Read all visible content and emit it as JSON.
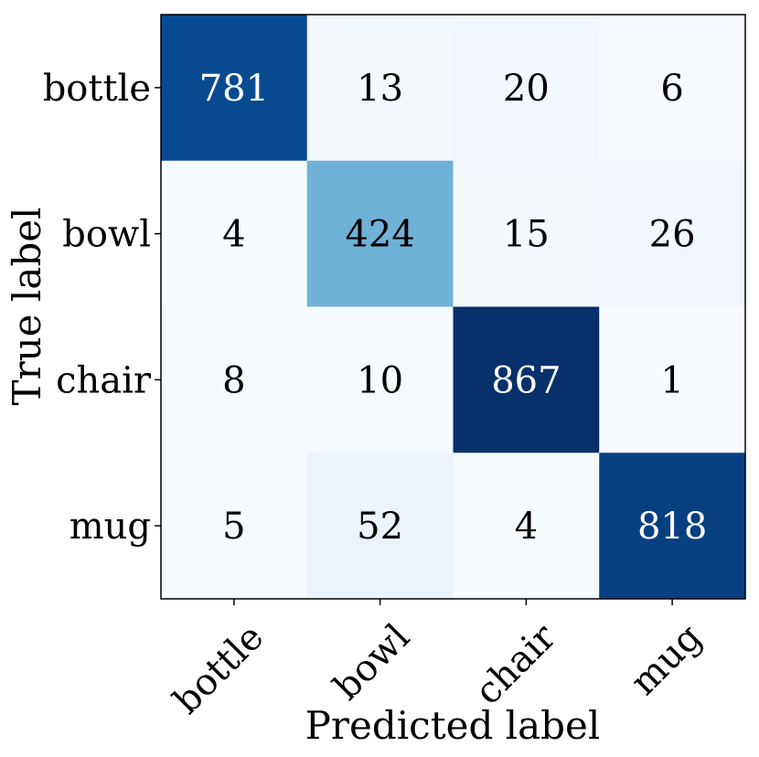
{
  "chart_data": {
    "type": "heatmap",
    "title": "",
    "xlabel": "Predicted label",
    "ylabel": "True label",
    "x_categories": [
      "bottle",
      "bowl",
      "chair",
      "mug"
    ],
    "y_categories": [
      "bottle",
      "bowl",
      "chair",
      "mug"
    ],
    "values": [
      [
        781,
        13,
        20,
        6
      ],
      [
        4,
        424,
        15,
        26
      ],
      [
        8,
        10,
        867,
        1
      ],
      [
        5,
        52,
        4,
        818
      ]
    ],
    "colormap": "Blues",
    "value_range": [
      1,
      867
    ],
    "grid": false,
    "colors": {
      "low": "#f7fbff",
      "high": "#08306b"
    }
  }
}
